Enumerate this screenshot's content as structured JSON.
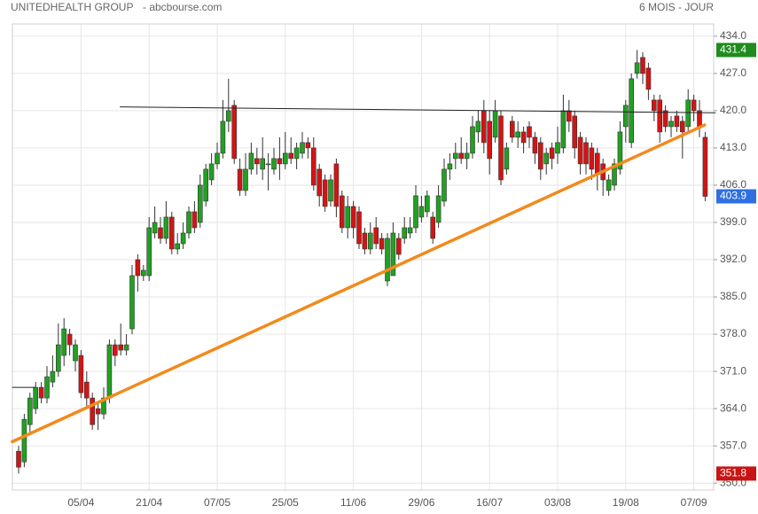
{
  "chart_data": {
    "type": "candlestick",
    "title": "UNITEDHEALTH GROUP",
    "source": "- abcbourse.com",
    "period": "6 MOIS - JOUR",
    "ylim": [
      348.7,
      436.3
    ],
    "yticks": [
      {
        "value": 350,
        "label": "350.0"
      },
      {
        "value": 357,
        "label": "357.0"
      },
      {
        "value": 364,
        "label": "364.0"
      },
      {
        "value": 371,
        "label": "371.0"
      },
      {
        "value": 378,
        "label": "378.0"
      },
      {
        "value": 385,
        "label": "385.0"
      },
      {
        "value": 392,
        "label": "392.0"
      },
      {
        "value": 399,
        "label": "399.0"
      },
      {
        "value": 406,
        "label": "406.0"
      },
      {
        "value": 413,
        "label": "413.0"
      },
      {
        "value": 420,
        "label": "420.0"
      },
      {
        "value": 427,
        "label": "427.0"
      },
      {
        "value": 434,
        "label": "434.0"
      }
    ],
    "grid": true,
    "up_color": "#22a022",
    "down_color": "#d41414",
    "categories": [
      null,
      null,
      null,
      null,
      null,
      null,
      null,
      null,
      null,
      null,
      null,
      "05/04",
      null,
      null,
      null,
      null,
      null,
      null,
      null,
      null,
      null,
      null,
      null,
      "21/04",
      null,
      null,
      null,
      null,
      null,
      null,
      null,
      null,
      null,
      null,
      null,
      "07/05",
      null,
      null,
      null,
      null,
      null,
      null,
      null,
      null,
      null,
      null,
      null,
      "25/05",
      null,
      null,
      null,
      null,
      null,
      null,
      null,
      null,
      null,
      null,
      null,
      "11/06",
      null,
      null,
      null,
      null,
      null,
      null,
      null,
      null,
      null,
      null,
      null,
      "29/06",
      null,
      null,
      null,
      null,
      null,
      null,
      null,
      null,
      null,
      null,
      null,
      "16/07",
      null,
      null,
      null,
      null,
      null,
      null,
      null,
      null,
      null,
      null,
      null,
      "03/08",
      null,
      null,
      null,
      null,
      null,
      null,
      null,
      null,
      null,
      null,
      null,
      "19/08",
      null,
      null,
      null,
      null,
      null,
      null,
      null,
      null,
      null,
      null,
      null,
      "07/09",
      null,
      null
    ],
    "open": [
      356,
      354,
      361,
      364,
      368,
      366,
      369,
      371,
      374,
      378,
      373,
      374,
      369,
      366,
      364,
      363,
      366,
      376,
      376,
      375,
      379,
      392,
      389,
      389,
      397,
      398,
      396,
      400,
      394,
      395,
      397,
      401,
      399,
      403,
      407,
      410,
      412,
      418,
      421,
      409,
      405,
      409,
      411,
      409,
      410,
      409,
      411,
      410,
      412,
      411,
      412,
      414,
      413,
      409,
      407,
      403,
      410,
      404,
      398,
      402,
      401,
      397,
      394,
      398,
      396,
      388,
      389,
      396,
      396,
      397,
      398,
      400,
      401,
      400,
      399,
      403,
      409,
      411,
      412,
      411,
      412,
      416,
      420,
      418,
      415,
      419,
      409,
      418,
      415,
      416,
      417,
      415,
      414,
      410,
      413,
      412,
      413,
      420,
      419,
      415,
      414,
      413,
      412,
      410,
      405,
      406,
      409,
      417,
      414,
      427,
      430,
      428,
      422,
      422,
      420,
      417,
      419,
      418,
      417,
      422,
      420,
      415
    ],
    "high": [
      357,
      363,
      367,
      369,
      369,
      372,
      374,
      380,
      381,
      379,
      377,
      375,
      371,
      367,
      365,
      368,
      377,
      377,
      380,
      378,
      391,
      393,
      391,
      400,
      402,
      400,
      403,
      401,
      397,
      399,
      402,
      403,
      408,
      410,
      412,
      414,
      422,
      426,
      422,
      411,
      412,
      414,
      413,
      415,
      412,
      413,
      415,
      416,
      415,
      414,
      416,
      415,
      415,
      410,
      408,
      408,
      411,
      405,
      404,
      403,
      402,
      398,
      399,
      400,
      397,
      397,
      399,
      397,
      400,
      400,
      406,
      404,
      405,
      401,
      406,
      411,
      412,
      414,
      415,
      414,
      419,
      420,
      422,
      420,
      422,
      420,
      414,
      419,
      418,
      417,
      418,
      416,
      415,
      413,
      414,
      417,
      423,
      422,
      420,
      416,
      415,
      414,
      413,
      411,
      408,
      411,
      418,
      422,
      427,
      431.4,
      431,
      429,
      423,
      423,
      421,
      419,
      420,
      419,
      424,
      423,
      422,
      416
    ],
    "low": [
      351.8,
      353,
      359,
      363,
      365,
      365,
      368,
      370,
      372,
      374,
      371,
      366,
      364,
      360,
      360,
      362,
      365,
      372,
      374,
      374,
      378,
      386,
      388,
      388,
      396,
      395,
      395,
      393,
      393,
      394,
      396,
      397,
      398,
      402,
      406,
      409,
      411,
      416,
      410,
      404,
      404,
      408,
      408,
      407,
      405,
      408,
      407,
      409,
      410,
      409,
      411,
      411,
      405,
      402,
      401,
      402,
      400,
      397,
      396,
      396,
      394,
      393,
      393,
      394,
      393,
      387,
      389,
      392,
      395,
      396,
      397,
      399,
      400,
      395,
      398,
      402,
      407,
      409,
      410,
      409,
      411,
      414,
      412,
      408,
      414,
      406,
      408,
      414,
      413,
      412,
      413,
      410,
      407,
      408,
      409,
      410,
      412,
      416,
      411,
      408,
      408,
      407,
      405,
      404,
      404,
      405,
      408,
      414,
      413,
      426,
      425,
      422,
      418,
      414,
      416,
      415,
      416,
      411,
      416,
      418,
      415,
      403
    ],
    "close": [
      353,
      362,
      366,
      368,
      366,
      370,
      371,
      376,
      379,
      376,
      376,
      367,
      366,
      361,
      363,
      366,
      376,
      374,
      375,
      376,
      389,
      389,
      390,
      398,
      399,
      396,
      400,
      394,
      395,
      397,
      401,
      398,
      406,
      409,
      410,
      412,
      418,
      420,
      411,
      405,
      409,
      412,
      410,
      411,
      410,
      411,
      410,
      412,
      411,
      413,
      414,
      413,
      406,
      404,
      402,
      407,
      402,
      398,
      402,
      398,
      395,
      394,
      397,
      395,
      394,
      396,
      397,
      393,
      398,
      398,
      404,
      402,
      404,
      396,
      404,
      409,
      410,
      412,
      411,
      412,
      417,
      418,
      414,
      411,
      420,
      407,
      413,
      415,
      416,
      414,
      415,
      412,
      409,
      412,
      411,
      414,
      420,
      418,
      413,
      410,
      410,
      409,
      408,
      407,
      407,
      410,
      416,
      421,
      426,
      429,
      427,
      424,
      420,
      416,
      417,
      418,
      417,
      416,
      422,
      420,
      417,
      403.9
    ],
    "markers": [
      {
        "value": 431.4,
        "color": "#1e8c1e"
      },
      {
        "value": 403.9,
        "color": "#2f6fe0"
      },
      {
        "value": 351.8,
        "color": "#c81414"
      }
    ],
    "lines": [
      {
        "from": [
          17.9,
          420.7
        ],
        "to": [
          122.8,
          419.6
        ],
        "color": "#222222",
        "width": 1
      },
      {
        "from": [
          -1.1,
          368
        ],
        "to": [
          3.0,
          368
        ],
        "color": "#222222",
        "width": 1
      },
      {
        "from": [
          -1.1,
          357.8
        ],
        "to": [
          120.9,
          417.3
        ],
        "color": "#f28a1c",
        "width": 3.5
      }
    ]
  }
}
